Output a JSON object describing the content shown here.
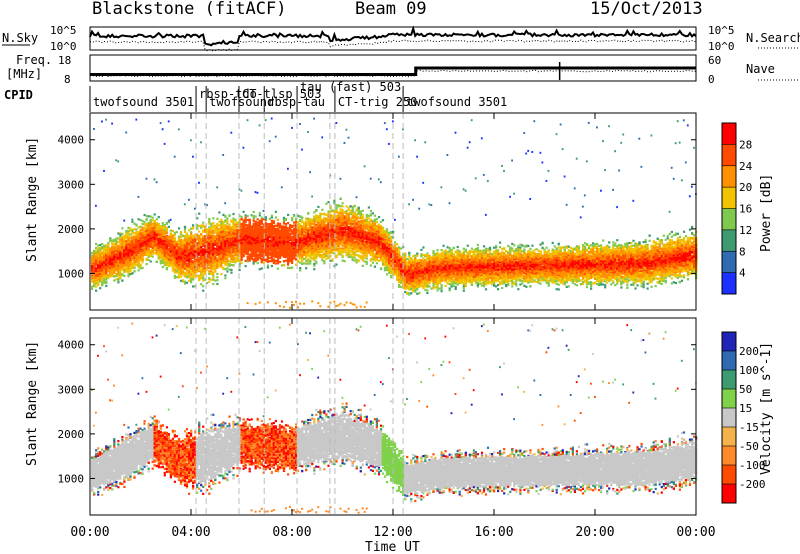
{
  "header": {
    "station": "Blackstone (fitACF)",
    "beam": "Beam 09",
    "date": "15/Oct/2013"
  },
  "noise_panel": {
    "left_label": "N.Sky",
    "right_label": "N.Search",
    "left_ticks": [
      "10^5",
      "10^0"
    ],
    "right_ticks": [
      "10^5",
      "10^0"
    ]
  },
  "freq_panel": {
    "left_label_1": "Freq.",
    "left_label_2": "[MHz]",
    "right_label": "Nave",
    "left_ticks": [
      "18",
      "8"
    ],
    "right_ticks": [
      "60",
      "0"
    ]
  },
  "cpid": {
    "label": "CPID",
    "segments": [
      {
        "text": "twofsound 3501",
        "x": 0.0,
        "row": 2
      },
      {
        "text": "rbsp-tdo",
        "x": 4.2,
        "row": 1
      },
      {
        "text": "twofsound",
        "x": 4.6,
        "row": 2
      },
      {
        "text": "CT-tlsp 503",
        "x": 5.9,
        "row": 1
      },
      {
        "text": "rbsp-tau",
        "x": 6.9,
        "row": 2
      },
      {
        "text": "tau (fast) 503",
        "x": 8.2,
        "row": 0
      },
      {
        "text": "CT-trig 250",
        "x": 9.7,
        "row": 2
      },
      {
        "text": "twofsound 3501",
        "x": 12.4,
        "row": 2
      }
    ]
  },
  "power_panel": {
    "ylabel": "Slant Range [km]",
    "colorbar_label": "Power [dB]",
    "colorbar_ticks": [
      "28",
      "24",
      "20",
      "16",
      "12",
      "8",
      "4"
    ],
    "colors": [
      "#ff0000",
      "#ff4a00",
      "#ff9000",
      "#f2c300",
      "#7fc94f",
      "#3c9b70",
      "#2f6bb0",
      "#1c30ff"
    ]
  },
  "velocity_panel": {
    "ylabel": "Slant Range [km]",
    "colorbar_label": "Velocity [m s^-1]",
    "colorbar_ticks": [
      "200",
      "100",
      "50",
      "15",
      "-15",
      "-50",
      "-100",
      "-200"
    ],
    "colors": [
      "#1f23b8",
      "#2f6bb0",
      "#3c9b70",
      "#7fd24a",
      "#c8c8c8",
      "#f4b24a",
      "#ff8a2a",
      "#ff4a00",
      "#ff0000"
    ]
  },
  "xaxis": {
    "label": "Time UT",
    "ticks": [
      "00:00",
      "04:00",
      "08:00",
      "12:00",
      "16:00",
      "20:00",
      "00:00"
    ]
  },
  "chart_data": {
    "type": "heatmap",
    "title": "Blackstone (fitACF)  Beam 09  15/Oct/2013",
    "xlabel": "Time UT",
    "ylabel": "Slant Range [km]",
    "xlim_hours": [
      0,
      24
    ],
    "ylim_km": [
      180,
      4600
    ],
    "yticks": [
      1000,
      2000,
      3000,
      4000
    ],
    "mode_change_lines_hours": [
      4.2,
      4.6,
      5.9,
      6.9,
      8.2,
      9.5,
      9.7,
      12.0,
      12.4
    ],
    "scatter_band": [
      {
        "t": 0.0,
        "center_km": 1100,
        "width_km": 400
      },
      {
        "t": 1.5,
        "center_km": 1500,
        "width_km": 500
      },
      {
        "t": 2.5,
        "center_km": 1850,
        "width_km": 450
      },
      {
        "t": 3.5,
        "center_km": 1400,
        "width_km": 500
      },
      {
        "t": 4.5,
        "center_km": 1500,
        "width_km": 700
      },
      {
        "t": 6.0,
        "center_km": 1800,
        "width_km": 500
      },
      {
        "t": 8.0,
        "center_km": 1700,
        "width_km": 500
      },
      {
        "t": 10.0,
        "center_km": 2000,
        "width_km": 600
      },
      {
        "t": 11.5,
        "center_km": 1700,
        "width_km": 500
      },
      {
        "t": 12.5,
        "center_km": 1000,
        "width_km": 400
      },
      {
        "t": 14.0,
        "center_km": 1150,
        "width_km": 400
      },
      {
        "t": 18.0,
        "center_km": 1200,
        "width_km": 400
      },
      {
        "t": 22.0,
        "center_km": 1250,
        "width_km": 450
      },
      {
        "t": 24.0,
        "center_km": 1450,
        "width_km": 500
      }
    ],
    "power_range_db": [
      0,
      30
    ],
    "velocity_range_ms": [
      -200,
      200
    ],
    "frequency_mhz_before": 10.5,
    "frequency_mhz_after": 13.0,
    "frequency_step_hour": 12.9
  }
}
